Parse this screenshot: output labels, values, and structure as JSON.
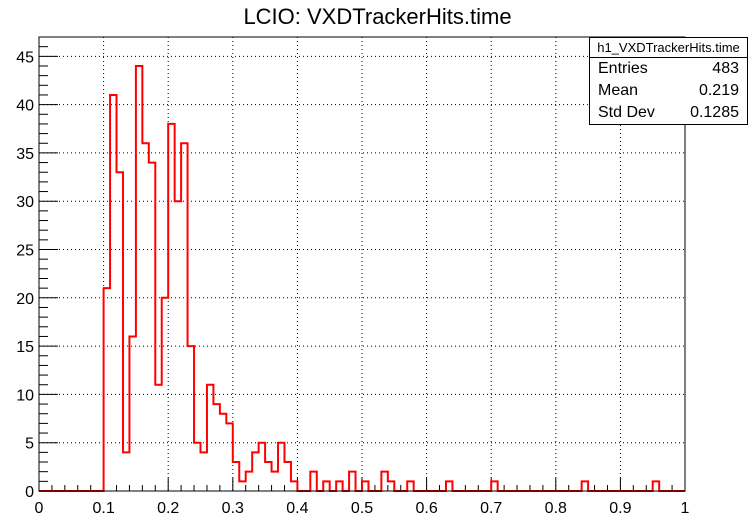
{
  "chart_data": {
    "type": "histogram",
    "title": "LCIO: VXDTrackerHits.time",
    "xlabel": "",
    "ylabel": "",
    "xlim": [
      0,
      1
    ],
    "ylim": [
      0,
      47
    ],
    "xticks": [
      "0",
      "0.1",
      "0.2",
      "0.3",
      "0.4",
      "0.5",
      "0.6",
      "0.7",
      "0.8",
      "0.9",
      "1"
    ],
    "yticks": [
      "0",
      "5",
      "10",
      "15",
      "20",
      "25",
      "30",
      "35",
      "40",
      "45"
    ],
    "grid": true,
    "line_color": "#ff0000",
    "bin_edges_start": 0,
    "bin_width": 0.01,
    "values": [
      0,
      0,
      0,
      0,
      0,
      0,
      0,
      0,
      0,
      0,
      21,
      41,
      33,
      4,
      16,
      44,
      36,
      34,
      11,
      20,
      38,
      30,
      36,
      15,
      5,
      4,
      11,
      9,
      8,
      7,
      3,
      1,
      2,
      4,
      5,
      3,
      2,
      5,
      3,
      1,
      0,
      0,
      2,
      0,
      1,
      0,
      1,
      0,
      2,
      0,
      1,
      0,
      0,
      2,
      1,
      0,
      0,
      1,
      0,
      0,
      0,
      0,
      0,
      1,
      0,
      0,
      0,
      0,
      0,
      0,
      1,
      0,
      0,
      0,
      0,
      0,
      0,
      0,
      0,
      0,
      0,
      0,
      0,
      0,
      1,
      0,
      0,
      0,
      0,
      0,
      0,
      0,
      0,
      0,
      0,
      1,
      0,
      0,
      0,
      0
    ],
    "stats": {
      "name": "h1_VXDTrackerHits.time",
      "rows": [
        {
          "label": "Entries",
          "value": "483"
        },
        {
          "label": "Mean",
          "value": "0.219"
        },
        {
          "label": "Std Dev",
          "value": "0.1285"
        }
      ]
    }
  }
}
